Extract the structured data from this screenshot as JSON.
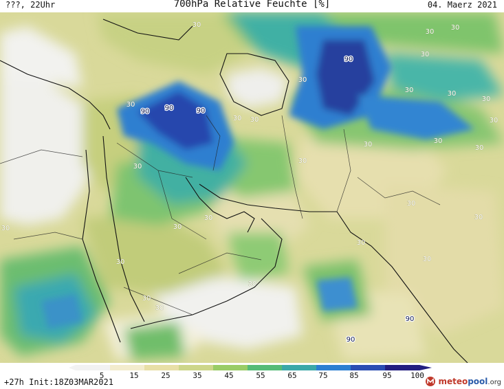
{
  "header": {
    "left": "???, 22Uhr",
    "title": "700hPa Relative Feuchte [%]",
    "right": "04. Maerz 2021"
  },
  "footer": {
    "left": "+27h Init:18Z03MAR2021",
    "logo": {
      "part1": "meteo",
      "part2": "pool",
      "part3": ".org"
    }
  },
  "colorbar": {
    "labels": [
      "5",
      "15",
      "25",
      "35",
      "45",
      "55",
      "65",
      "75",
      "85",
      "95",
      "100"
    ],
    "colors": [
      "#f2f2f2",
      "#f3eccd",
      "#e8dfa6",
      "#cdd68a",
      "#99cc66",
      "#55bb77",
      "#3aa8a8",
      "#2b7fd1",
      "#2a4db3",
      "#221e80"
    ]
  },
  "contour_labels": [
    {
      "text": "30"
    },
    {
      "text": "30"
    },
    {
      "text": "30"
    },
    {
      "text": "30"
    },
    {
      "text": "30"
    },
    {
      "text": "30"
    },
    {
      "text": "30"
    },
    {
      "text": "30"
    },
    {
      "text": "30"
    },
    {
      "text": "30"
    },
    {
      "text": "30"
    },
    {
      "text": "30"
    },
    {
      "text": "30"
    },
    {
      "text": "30"
    },
    {
      "text": "30"
    },
    {
      "text": "30"
    },
    {
      "text": "30"
    },
    {
      "text": "30"
    },
    {
      "text": "30"
    },
    {
      "text": "30"
    },
    {
      "text": "30"
    },
    {
      "text": "30"
    },
    {
      "text": "30"
    },
    {
      "text": "30"
    },
    {
      "text": "30"
    },
    {
      "text": "30"
    },
    {
      "text": "30"
    },
    {
      "text": "30"
    },
    {
      "text": "90"
    },
    {
      "text": "90"
    },
    {
      "text": "90"
    },
    {
      "text": "90"
    },
    {
      "text": "90"
    },
    {
      "text": "90"
    }
  ]
}
